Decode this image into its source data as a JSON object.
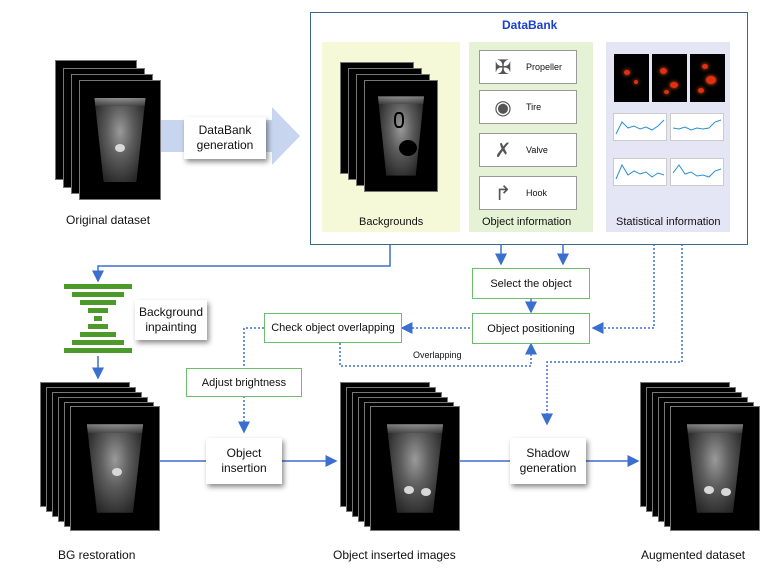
{
  "databank": {
    "title": "DataBank",
    "backgrounds_label": "Backgrounds",
    "object_info_label": "Object information",
    "stat_info_label": "Statistical information",
    "objects": [
      "Propeller",
      "Tire",
      "Valve",
      "Hook"
    ]
  },
  "labels": {
    "original": "Original dataset",
    "generation": "DataBank generation",
    "bg_inpaint": "Background inpainting",
    "bg_restoration": "BG restoration",
    "inserted_images": "Object inserted images",
    "augmented": "Augmented dataset",
    "overlapping": "Overlapping"
  },
  "steps": {
    "select": "Select the object",
    "positioning": "Object positioning",
    "check": "Check object overlapping",
    "brightness": "Adjust brightness",
    "insertion": "Object insertion",
    "shadow": "Shadow generation"
  },
  "colors": {
    "arrow": "#3a6fcf",
    "box_border": "#6bbf6b",
    "databank_border": "#3b6a8a",
    "bg_panel": "#f6f9d8",
    "obj_panel": "#e5f2d5",
    "stat_panel": "#e4e6f6",
    "inpaint_bars": "#4c9a2a",
    "title": "#1a3fd0"
  }
}
